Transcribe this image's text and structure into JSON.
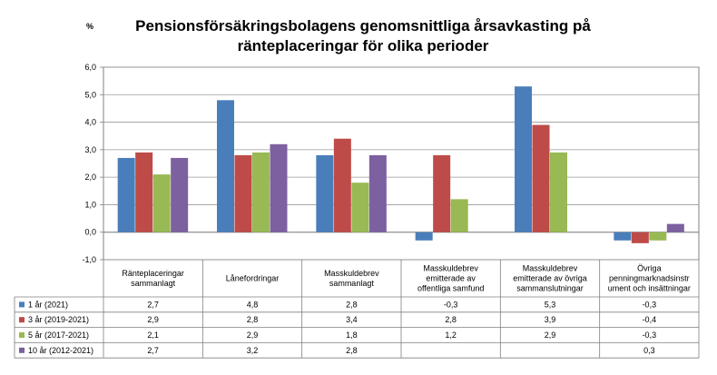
{
  "chart_data": {
    "type": "bar",
    "title": "Pensionsförsäkringsbolagens genomsnittliga årsavkasting på ränteplaceringar för olika perioder",
    "ylabel": "%",
    "ylim": [
      -1.0,
      6.0
    ],
    "yticks": [
      "6,0",
      "5,0",
      "4,0",
      "3,0",
      "2,0",
      "1,0",
      "0,0",
      "-1,0"
    ],
    "grid": true,
    "legend": "data-table",
    "categories": [
      "Ränteplaceringar sammanlagt",
      "Lånefordringar",
      "Masskuldebrev sammanlagt",
      "Masskuldebrev emitterade av offentliga samfund",
      "Masskuldebrev emitterade av övriga sammanslutningar",
      "Övriga penningmarknadsinstrument och insättningar"
    ],
    "category_lines": [
      [
        "Ränteplaceringar",
        "sammanlagt"
      ],
      [
        "Lånefordringar"
      ],
      [
        "Masskuldebrev",
        "sammanlagt"
      ],
      [
        "Masskuldebrev",
        "emitterade av",
        "offentliga samfund"
      ],
      [
        "Masskuldebrev",
        "emitterade av övriga",
        "sammanslutningar"
      ],
      [
        "Övriga",
        "penningmarknadsinstr",
        "ument och insättningar"
      ]
    ],
    "series": [
      {
        "name": "1 år (2021)",
        "color": "#4a7ebb",
        "values": [
          2.7,
          4.8,
          2.8,
          -0.3,
          5.3,
          -0.3
        ],
        "labels": [
          "2,7",
          "4,8",
          "2,8",
          "-0,3",
          "5,3",
          "-0,3"
        ]
      },
      {
        "name": "3 år (2019-2021)",
        "color": "#be4b48",
        "values": [
          2.9,
          2.8,
          3.4,
          2.8,
          3.9,
          -0.4
        ],
        "labels": [
          "2,9",
          "2,8",
          "3,4",
          "2,8",
          "3,9",
          "-0,4"
        ]
      },
      {
        "name": "5 år (2017-2021)",
        "color": "#98b954",
        "values": [
          2.1,
          2.9,
          1.8,
          1.2,
          2.9,
          -0.3
        ],
        "labels": [
          "2,1",
          "2,9",
          "1,8",
          "1,2",
          "2,9",
          "-0,3"
        ]
      },
      {
        "name": "10 år (2012-2021)",
        "color": "#7d60a0",
        "values": [
          2.7,
          3.2,
          2.8,
          null,
          null,
          0.3
        ],
        "labels": [
          "2,7",
          "3,2",
          "2,8",
          "",
          "",
          "0,3"
        ]
      }
    ]
  }
}
